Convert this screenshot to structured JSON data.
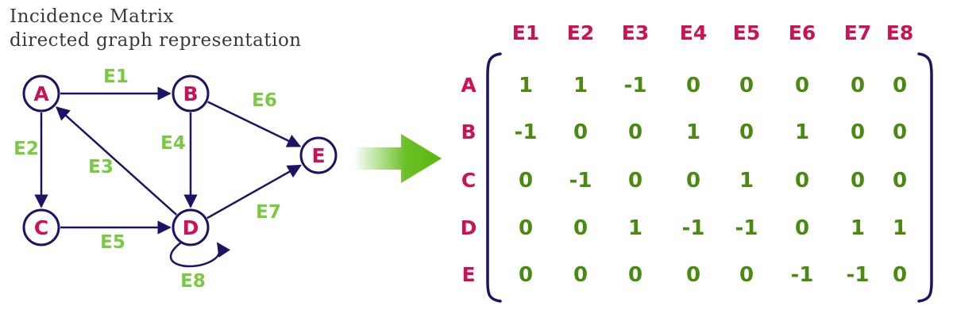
{
  "title": {
    "line1": "Incidence Matrix",
    "line2": "directed graph representation"
  },
  "colors": {
    "node_text": "#cc1155",
    "edge_line": "#1b1464",
    "edge_label": "#7ac943",
    "matrix_value": "#4a8a10",
    "arrow_green": "#5ab80c"
  },
  "graph": {
    "nodes": [
      {
        "id": "A",
        "label": "A"
      },
      {
        "id": "B",
        "label": "B"
      },
      {
        "id": "C",
        "label": "C"
      },
      {
        "id": "D",
        "label": "D"
      },
      {
        "id": "E",
        "label": "E"
      }
    ],
    "edges": [
      {
        "id": "E1",
        "label": "E1",
        "from": "A",
        "to": "B"
      },
      {
        "id": "E2",
        "label": "E2",
        "from": "A",
        "to": "C"
      },
      {
        "id": "E3",
        "label": "E3",
        "from": "D",
        "to": "A"
      },
      {
        "id": "E4",
        "label": "E4",
        "from": "B",
        "to": "D"
      },
      {
        "id": "E5",
        "label": "E5",
        "from": "C",
        "to": "D"
      },
      {
        "id": "E6",
        "label": "E6",
        "from": "B",
        "to": "E"
      },
      {
        "id": "E7",
        "label": "E7",
        "from": "D",
        "to": "E"
      },
      {
        "id": "E8",
        "label": "E8",
        "from": "D",
        "to": "D"
      }
    ]
  },
  "arrow_icon": "right-arrow-icon",
  "matrix": {
    "columns": [
      "E1",
      "E2",
      "E3",
      "E4",
      "E5",
      "E6",
      "E7",
      "E8"
    ],
    "rows": [
      {
        "label": "A",
        "values": [
          "1",
          "1",
          "-1",
          "0",
          "0",
          "0",
          "0",
          "0"
        ]
      },
      {
        "label": "B",
        "values": [
          "-1",
          "0",
          "0",
          "1",
          "0",
          "1",
          "0",
          "0"
        ]
      },
      {
        "label": "C",
        "values": [
          "0",
          "-1",
          "0",
          "0",
          "1",
          "0",
          "0",
          "0"
        ]
      },
      {
        "label": "D",
        "values": [
          "0",
          "0",
          "1",
          "-1",
          "-1",
          "0",
          "1",
          "1"
        ]
      },
      {
        "label": "E",
        "values": [
          "0",
          "0",
          "0",
          "0",
          "0",
          "-1",
          "-1",
          "0"
        ]
      }
    ]
  }
}
